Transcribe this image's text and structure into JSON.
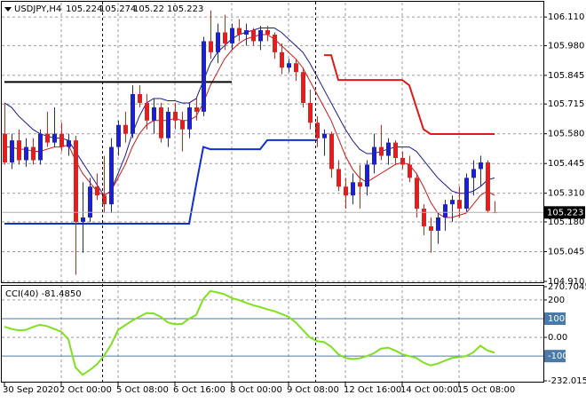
{
  "chart_data": [
    {
      "type": "candlestick",
      "symbol": "USDJPY,H4",
      "open": [
        105.58,
        105.45,
        105.55,
        105.46,
        105.52,
        105.46,
        105.58,
        105.54,
        105.58,
        105.52,
        105.55,
        105.18,
        105.2,
        105.34,
        105.3,
        105.26,
        105.52,
        105.62,
        105.58,
        105.76,
        105.72,
        105.64,
        105.7,
        105.56,
        105.68,
        105.64,
        105.6,
        105.7,
        105.68,
        106.0,
        105.95,
        106.04,
        105.99,
        106.06,
        106.03,
        106.05,
        106.0,
        106.05,
        106.03,
        105.95,
        105.88,
        105.9,
        105.86,
        105.72,
        105.63,
        105.56,
        105.58,
        105.42,
        105.34,
        105.3,
        105.36,
        105.34,
        105.44,
        105.52,
        105.48,
        105.54,
        105.47,
        105.44,
        105.38,
        105.24,
        105.16,
        105.14,
        105.2,
        105.26,
        105.28,
        105.24,
        105.38,
        105.42,
        105.45,
        105.224
      ],
      "high": [
        105.72,
        105.58,
        105.6,
        105.56,
        105.56,
        105.6,
        105.68,
        105.7,
        105.63,
        105.58,
        105.57,
        105.36,
        105.38,
        105.4,
        105.48,
        105.56,
        105.64,
        105.68,
        105.8,
        105.8,
        105.76,
        105.74,
        105.72,
        105.7,
        105.72,
        105.68,
        105.72,
        105.74,
        106.02,
        106.14,
        106.08,
        106.12,
        106.08,
        106.1,
        106.08,
        106.06,
        106.07,
        106.07,
        106.04,
        105.99,
        105.92,
        105.92,
        105.88,
        105.78,
        105.66,
        105.6,
        105.59,
        105.46,
        105.38,
        105.4,
        105.44,
        105.46,
        105.58,
        105.62,
        105.56,
        105.55,
        105.5,
        105.48,
        105.4,
        105.26,
        105.2,
        105.22,
        105.28,
        105.3,
        105.34,
        105.4,
        105.46,
        105.48,
        105.46,
        105.274
      ],
      "low": [
        105.44,
        105.42,
        105.44,
        105.43,
        105.44,
        105.44,
        105.52,
        105.52,
        105.5,
        105.48,
        104.94,
        105.04,
        105.18,
        105.28,
        105.22,
        105.22,
        105.48,
        105.54,
        105.56,
        105.7,
        105.6,
        105.58,
        105.54,
        105.52,
        105.6,
        105.5,
        105.56,
        105.64,
        105.66,
        105.92,
        105.9,
        105.96,
        105.96,
        106.0,
        105.98,
        105.98,
        105.96,
        106.0,
        105.92,
        105.85,
        105.86,
        105.82,
        105.7,
        105.6,
        105.52,
        105.48,
        105.38,
        105.32,
        105.24,
        105.26,
        105.24,
        105.3,
        105.4,
        105.46,
        105.44,
        105.44,
        105.42,
        105.36,
        105.2,
        105.12,
        105.04,
        105.08,
        105.14,
        105.18,
        105.2,
        105.22,
        105.3,
        105.34,
        105.22,
        105.22
      ],
      "close": [
        105.45,
        105.55,
        105.46,
        105.52,
        105.46,
        105.58,
        105.54,
        105.58,
        105.52,
        105.55,
        105.18,
        105.2,
        105.34,
        105.3,
        105.26,
        105.52,
        105.62,
        105.58,
        105.76,
        105.72,
        105.64,
        105.7,
        105.56,
        105.68,
        105.64,
        105.6,
        105.7,
        105.68,
        106.0,
        105.95,
        106.04,
        105.99,
        106.06,
        106.03,
        106.05,
        106.0,
        106.05,
        106.03,
        105.95,
        105.88,
        105.9,
        105.86,
        105.72,
        105.63,
        105.56,
        105.58,
        105.42,
        105.34,
        105.3,
        105.36,
        105.34,
        105.44,
        105.52,
        105.48,
        105.54,
        105.47,
        105.44,
        105.38,
        105.24,
        105.16,
        105.14,
        105.2,
        105.26,
        105.28,
        105.24,
        105.38,
        105.42,
        105.45,
        105.23,
        105.223
      ],
      "up_color": "#1c22c8",
      "down_color": "#e0201e",
      "overlays": [
        {
          "color": "#1a1a8c",
          "style": "thin",
          "values": [
            105.72,
            105.7,
            105.66,
            105.63,
            105.6,
            105.58,
            105.57,
            105.56,
            105.56,
            105.55,
            105.5,
            105.45,
            105.4,
            105.35,
            105.3,
            105.32,
            105.4,
            105.48,
            105.58,
            105.66,
            105.72,
            105.74,
            105.74,
            105.73,
            105.73,
            105.72,
            105.72,
            105.74,
            105.82,
            105.9,
            105.95,
            105.98,
            106.01,
            106.03,
            106.04,
            106.05,
            106.06,
            106.06,
            106.06,
            106.04,
            106.01,
            105.98,
            105.95,
            105.9,
            105.84,
            105.78,
            105.72,
            105.66,
            105.6,
            105.55,
            105.51,
            105.49,
            105.49,
            105.5,
            105.51,
            105.52,
            105.52,
            105.52,
            105.5,
            105.46,
            105.42,
            105.38,
            105.35,
            105.32,
            105.31,
            105.31,
            105.32,
            105.34,
            105.37,
            105.38
          ]
        },
        {
          "color": "#d01818",
          "style": "thin",
          "values": [
            105.52,
            105.52,
            105.51,
            105.51,
            105.5,
            105.5,
            105.51,
            105.52,
            105.52,
            105.53,
            105.46,
            105.4,
            105.36,
            105.32,
            105.3,
            105.32,
            105.38,
            105.44,
            105.52,
            105.58,
            105.62,
            105.64,
            105.64,
            105.64,
            105.65,
            105.64,
            105.64,
            105.66,
            105.72,
            105.8,
            105.86,
            105.92,
            105.96,
            105.99,
            106.01,
            106.02,
            106.03,
            106.03,
            106.01,
            105.98,
            105.95,
            105.92,
            105.88,
            105.82,
            105.76,
            105.7,
            105.64,
            105.56,
            105.48,
            105.42,
            105.38,
            105.36,
            105.38,
            105.4,
            105.42,
            105.44,
            105.45,
            105.44,
            105.4,
            105.34,
            105.27,
            105.22,
            105.2,
            105.2,
            105.21,
            105.22,
            105.26,
            105.3,
            105.32,
            105.3
          ]
        },
        {
          "color": "#000000",
          "style": "thick",
          "values": [
            105.815,
            105.815,
            105.815,
            105.815,
            105.815,
            105.815,
            105.815,
            105.815,
            105.815,
            105.815,
            105.815,
            105.815,
            105.815,
            105.815,
            105.815,
            105.815,
            105.815,
            105.815,
            105.815,
            105.815,
            105.815,
            105.815,
            105.815,
            105.815,
            105.815,
            105.815,
            105.815,
            105.815,
            105.815,
            105.815,
            105.815,
            105.815,
            105.815,
            null,
            null,
            null,
            null,
            null,
            null,
            null,
            null,
            null,
            null,
            null,
            null,
            null,
            null,
            null,
            null,
            null,
            null,
            null,
            null,
            null,
            null,
            null,
            null,
            null,
            null,
            null,
            null,
            null,
            null,
            null,
            null,
            null,
            null,
            null,
            null,
            null
          ]
        },
        {
          "color": "#1030d0",
          "style": "thick",
          "values": [
            105.172,
            105.172,
            105.172,
            105.172,
            105.172,
            105.172,
            105.172,
            105.172,
            105.172,
            105.172,
            105.172,
            105.172,
            105.172,
            105.172,
            105.172,
            105.172,
            105.172,
            105.172,
            105.172,
            105.172,
            105.172,
            105.172,
            105.172,
            105.172,
            105.172,
            105.172,
            105.172,
            105.35,
            105.52,
            105.51,
            105.51,
            105.51,
            105.51,
            105.51,
            105.51,
            105.51,
            105.51,
            105.551,
            105.551,
            105.551,
            105.551,
            105.551,
            105.551,
            105.551,
            105.551,
            null,
            null,
            null,
            null,
            null,
            null,
            null,
            null,
            null,
            null,
            null,
            null,
            null,
            null,
            null,
            null,
            null,
            null,
            null,
            null,
            null,
            null,
            null,
            null,
            null
          ]
        },
        {
          "color": "#e01818",
          "style": "thick",
          "values": [
            null,
            null,
            null,
            null,
            null,
            null,
            null,
            null,
            null,
            null,
            null,
            null,
            null,
            null,
            null,
            null,
            null,
            null,
            null,
            null,
            null,
            null,
            null,
            null,
            null,
            null,
            null,
            null,
            null,
            null,
            null,
            null,
            null,
            null,
            null,
            null,
            null,
            null,
            null,
            null,
            null,
            null,
            null,
            null,
            null,
            105.937,
            105.937,
            105.824,
            105.824,
            105.824,
            105.824,
            105.824,
            105.824,
            105.824,
            105.824,
            105.824,
            105.824,
            105.8,
            105.7,
            105.6,
            105.579,
            105.579,
            105.579,
            105.579,
            105.579,
            105.579,
            105.579,
            105.579,
            105.579,
            105.579
          ]
        }
      ],
      "ylim": [
        104.906,
        106.175
      ],
      "yticks": [
        {
          "value": 106.11,
          "label": "106.110"
        },
        {
          "value": 105.98,
          "label": "105.980"
        },
        {
          "value": 105.845,
          "label": "105.845"
        },
        {
          "value": 105.715,
          "label": "105.715"
        },
        {
          "value": 105.58,
          "label": "105.580"
        },
        {
          "value": 105.445,
          "label": "105.445"
        },
        {
          "value": 105.31,
          "label": "105.310"
        },
        {
          "value": 105.18,
          "label": "105.180"
        },
        {
          "value": 105.045,
          "label": "105.045"
        },
        {
          "value": 104.91,
          "label": "104.910"
        }
      ],
      "xtick_labels": [
        "30 Sep 2020",
        "2 Oct 00:00",
        "5 Oct 08:00",
        "6 Oct 16:00",
        "8 Oct 00:00",
        "9 Oct 08:00",
        "12 Oct 16:00",
        "14 Oct 00:00",
        "15 Oct 08:00"
      ],
      "grid": true
    },
    {
      "type": "line",
      "title": "CCI(40) -81.4850",
      "color": "#80e020",
      "values": [
        57,
        45,
        38,
        40,
        55,
        67,
        60,
        45,
        30,
        -10,
        -160,
        -200,
        -175,
        -145,
        -100,
        -40,
        40,
        65,
        90,
        110,
        130,
        128,
        110,
        80,
        70,
        72,
        100,
        120,
        205,
        248,
        240,
        230,
        210,
        200,
        185,
        172,
        162,
        150,
        140,
        125,
        110,
        80,
        40,
        0,
        -20,
        -25,
        -50,
        -90,
        -110,
        -115,
        -112,
        -100,
        -85,
        -60,
        -55,
        -70,
        -90,
        -100,
        -110,
        -135,
        -150,
        -140,
        -125,
        -110,
        -105,
        -100,
        -80,
        -45,
        -70,
        -81.485
      ],
      "ylim": [
        -232.0152,
        270.7045
      ],
      "yticks": [
        270.7045,
        200,
        100,
        {
          "value": 0,
          "label": "0.00"
        },
        -100,
        -232.0152
      ],
      "levels": [
        100,
        -100
      ],
      "level_color": "#4a7aa8",
      "grid": true
    }
  ]
}
